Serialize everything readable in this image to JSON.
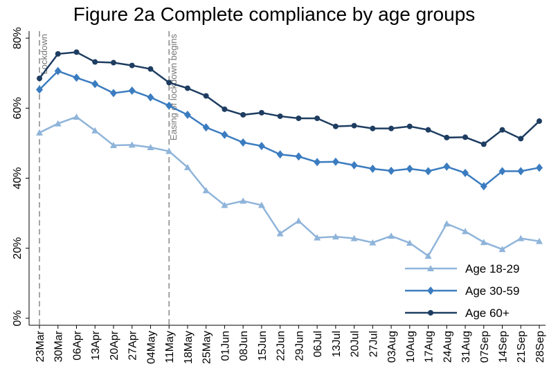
{
  "chart_data": {
    "type": "line",
    "title": "Figure 2a Complete compliance by age groups",
    "categories": [
      "23Mar",
      "30Mar",
      "06Apr",
      "13Apr",
      "20Apr",
      "27Apr",
      "04May",
      "11May",
      "18May",
      "25May",
      "01Jun",
      "08Jun",
      "15Jun",
      "22Jun",
      "29Jun",
      "06Jul",
      "13Jul",
      "20Jul",
      "27Jul",
      "03Aug",
      "10Aug",
      "17Aug",
      "24Aug",
      "31Aug",
      "07Sep",
      "14Sep",
      "21Sep",
      "28Sep"
    ],
    "series": [
      {
        "name": "Age 18-29",
        "color": "#8fb4da",
        "marker": "triangle",
        "values": [
          53,
          55.6,
          57.5,
          53.6,
          49.4,
          49.5,
          48.8,
          47.7,
          43.1,
          36.5,
          32.3,
          33.5,
          32.3,
          24.2,
          27.8,
          23,
          23.3,
          22.8,
          21.6,
          23.5,
          21.5,
          17.8,
          27,
          24.8,
          21.7,
          19.7,
          22.8,
          22
        ]
      },
      {
        "name": "Age 30-59",
        "color": "#3b7cc0",
        "marker": "diamond",
        "values": [
          65.3,
          70.6,
          68.7,
          66.9,
          64.3,
          65,
          63.1,
          60.7,
          58.1,
          54.5,
          52.4,
          50.2,
          49.2,
          46.8,
          46.2,
          44.6,
          44.7,
          43.7,
          42.7,
          42.1,
          42.7,
          42,
          43.3,
          41.5,
          37.7,
          42,
          42,
          43
        ]
      },
      {
        "name": "Age 60+",
        "color": "#1e3d61",
        "marker": "circle",
        "values": [
          68.5,
          75.5,
          76,
          73.2,
          73,
          72.2,
          71.2,
          67.3,
          65.7,
          63.5,
          59.7,
          58.1,
          58.7,
          57.7,
          57.1,
          57.1,
          54.8,
          55,
          54.2,
          54.2,
          54.8,
          53.8,
          51.6,
          51.7,
          49.7,
          53.8,
          51.3,
          56.3
        ]
      }
    ],
    "ylim": [
      -2,
      82
    ],
    "yticks": [
      {
        "value": 0,
        "label": "0%"
      },
      {
        "value": 20,
        "label": "20%"
      },
      {
        "value": 40,
        "label": "40%"
      },
      {
        "value": 60,
        "label": "60%"
      },
      {
        "value": 80,
        "label": "80%"
      }
    ],
    "grid": false,
    "legend": "bottom-right",
    "annotations": [
      {
        "x": "23Mar",
        "label": "Lockdown"
      },
      {
        "x": "11May",
        "label": "Easing of lockdown begins"
      }
    ]
  }
}
